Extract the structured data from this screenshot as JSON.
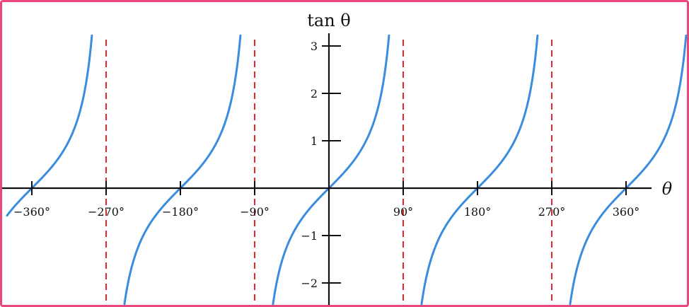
{
  "chart_data": {
    "type": "line",
    "function": "tan",
    "xlabel": "θ",
    "ylabel": "tan θ",
    "xlim": [
      -390,
      435
    ],
    "ylim": [
      -2.45,
      3.2
    ],
    "x_ticks": [
      -360,
      -270,
      -180,
      -90,
      90,
      180,
      270,
      360
    ],
    "x_tick_labels": [
      "−360°",
      "−270°",
      "−180°",
      "−90°",
      "90°",
      "180°",
      "270°",
      "360°"
    ],
    "y_ticks": [
      -2,
      -1,
      1,
      2,
      3
    ],
    "y_tick_labels": [
      "−2",
      "−1",
      "1",
      "2",
      "3"
    ],
    "asymptotes": [
      -270,
      -90,
      90,
      270
    ],
    "curve_color": "#3a8dde",
    "asymptote_color": "#e8262e",
    "axis_color": "#111111",
    "border_color": "#e8467c",
    "grid": false
  }
}
